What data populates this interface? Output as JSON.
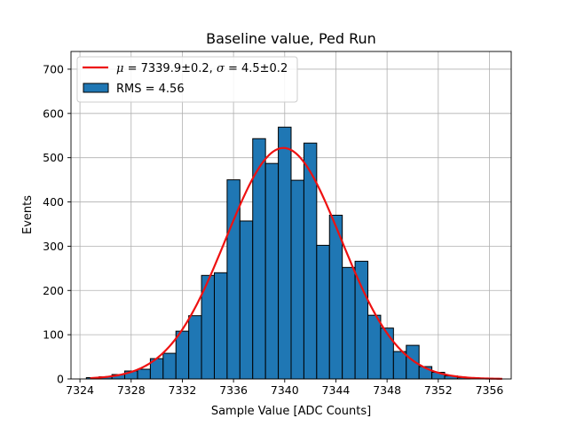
{
  "chart_data": {
    "type": "bar",
    "title": "Baseline value, Ped Run",
    "xlabel": "Sample Value [ADC Counts]",
    "ylabel": "Events",
    "xlim": [
      7323.3,
      7357.7
    ],
    "ylim": [
      0,
      740
    ],
    "xticks": [
      7324,
      7328,
      7332,
      7336,
      7340,
      7344,
      7348,
      7352,
      7356
    ],
    "yticks": [
      0,
      100,
      200,
      300,
      400,
      500,
      600,
      700
    ],
    "grid": true,
    "legend_position": "top-left",
    "bin_width": 1,
    "bins": [
      {
        "x": 7325,
        "count": 3
      },
      {
        "x": 7326,
        "count": 5
      },
      {
        "x": 7327,
        "count": 10
      },
      {
        "x": 7328,
        "count": 18
      },
      {
        "x": 7329,
        "count": 22
      },
      {
        "x": 7330,
        "count": 46
      },
      {
        "x": 7331,
        "count": 58
      },
      {
        "x": 7332,
        "count": 108
      },
      {
        "x": 7333,
        "count": 143
      },
      {
        "x": 7334,
        "count": 234
      },
      {
        "x": 7335,
        "count": 240
      },
      {
        "x": 7336,
        "count": 450
      },
      {
        "x": 7337,
        "count": 357
      },
      {
        "x": 7338,
        "count": 543
      },
      {
        "x": 7339,
        "count": 487
      },
      {
        "x": 7340,
        "count": 569
      },
      {
        "x": 7341,
        "count": 449
      },
      {
        "x": 7342,
        "count": 533
      },
      {
        "x": 7343,
        "count": 302
      },
      {
        "x": 7344,
        "count": 370
      },
      {
        "x": 7345,
        "count": 252
      },
      {
        "x": 7346,
        "count": 266
      },
      {
        "x": 7347,
        "count": 144
      },
      {
        "x": 7348,
        "count": 115
      },
      {
        "x": 7349,
        "count": 62
      },
      {
        "x": 7350,
        "count": 76
      },
      {
        "x": 7351,
        "count": 28
      },
      {
        "x": 7352,
        "count": 15
      },
      {
        "x": 7353,
        "count": 7
      },
      {
        "x": 7354,
        "count": 3
      }
    ],
    "fit": {
      "mu": 7339.9,
      "sigma": 4.5,
      "amplitude": 522,
      "x_range": [
        7324.8,
        7357.0
      ],
      "color": "#ee1111"
    },
    "colors": {
      "bar_fill": "#1f77b4",
      "bar_edge": "#000000",
      "grid": "#b0b0b0"
    },
    "legend": {
      "fit_label_mu_sym": "μ",
      "fit_label_mu_val": " = 7339.9±0.2, ",
      "fit_label_sigma_sym": "σ",
      "fit_label_sigma_val": " = 4.5±0.2",
      "hist_label": "RMS = 4.56"
    }
  }
}
